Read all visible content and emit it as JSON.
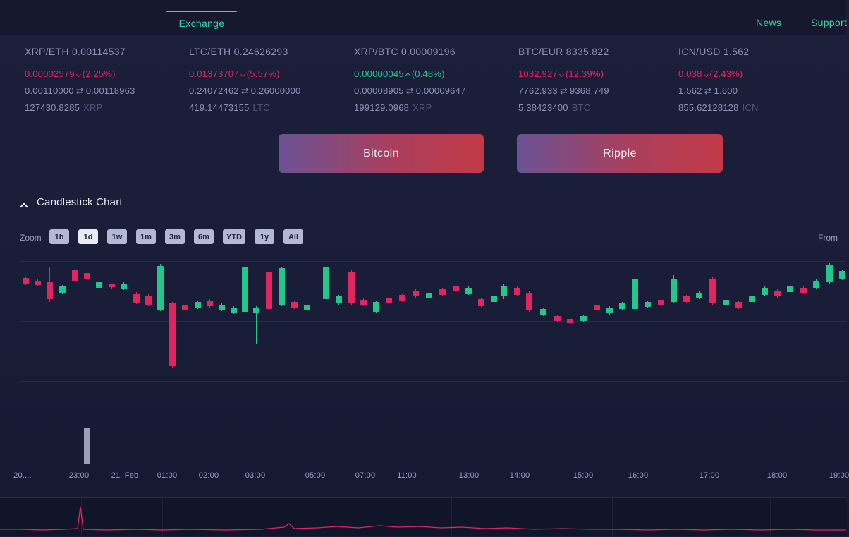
{
  "nav": {
    "exchange_label": "Exchange",
    "news_label": "News",
    "support_label": "Support"
  },
  "glyphs": {
    "range_sep": "⇄"
  },
  "tickers": [
    {
      "pair": "XRP/ETH 0.00114537",
      "change": "0.00002579",
      "direction": "down",
      "pct": "(2.25%)",
      "low": "0.00110000",
      "high": "0.00118963",
      "volume": "127430.8285",
      "unit": "XRP"
    },
    {
      "pair": "LTC/ETH 0.24626293",
      "change": "0.01373707",
      "direction": "down",
      "pct": "(5.57%)",
      "low": "0.24072462",
      "high": "0.26000000",
      "volume": "419.14473155",
      "unit": "LTC"
    },
    {
      "pair": "XRP/BTC 0.00009196",
      "change": "0.00000045",
      "direction": "up",
      "pct": "(0.48%)",
      "low": "0.00008905",
      "high": "0.00009647",
      "volume": "199129.0968",
      "unit": "XRP"
    },
    {
      "pair": "BTC/EUR 8335.822",
      "change": "1032.927",
      "direction": "down",
      "pct": "(12.39%)",
      "low": "7762.933",
      "high": "9368.749",
      "volume": "5.38423400",
      "unit": "BTC"
    },
    {
      "pair": "ICN/USD 1.562",
      "change": "0.038",
      "direction": "down",
      "pct": "(2.43%)",
      "low": "1.562",
      "high": "1.600",
      "volume": "855.62128128",
      "unit": "ICN"
    }
  ],
  "pair_buttons": [
    {
      "label": "Bitcoin"
    },
    {
      "label": "Ripple"
    }
  ],
  "chart_section": {
    "title": "Candlestick Chart",
    "zoom_label": "Zoom",
    "from_label": "From",
    "ranges": [
      "1h",
      "1d",
      "1w",
      "1m",
      "3m",
      "6m",
      "YTD",
      "1y",
      "All"
    ],
    "selected_range": "1d"
  },
  "colors": {
    "accent_teal": "#35d6a8",
    "up_green": "#23c68b",
    "down_pink": "#e3255f",
    "button_gradient_start": "#6a5295",
    "button_gradient_end": "#c23a47"
  },
  "chart_data": {
    "type": "candlestick",
    "x_ticks": [
      {
        "label": "20....",
        "x": 32
      },
      {
        "label": "23:00",
        "x": 112
      },
      {
        "label": "21. Feb",
        "x": 177
      },
      {
        "label": "01:00",
        "x": 237
      },
      {
        "label": "02:00",
        "x": 296
      },
      {
        "label": "03:00",
        "x": 362
      },
      {
        "label": "05:00",
        "x": 447
      },
      {
        "label": "07:00",
        "x": 518
      },
      {
        "label": "11:00",
        "x": 577
      },
      {
        "label": "13:00",
        "x": 665
      },
      {
        "label": "14:00",
        "x": 737
      },
      {
        "label": "15:00",
        "x": 827
      },
      {
        "label": "16:00",
        "x": 905
      },
      {
        "label": "17:00",
        "x": 1006
      },
      {
        "label": "18:00",
        "x": 1102
      },
      {
        "label": "19:00",
        "x": 1190
      }
    ],
    "h_gridlines": [
      12,
      97,
      182,
      234
    ],
    "candles": [
      [
        36,
        34,
        36,
        44,
        46,
        "d"
      ],
      [
        53,
        38,
        40,
        46,
        48,
        "d"
      ],
      [
        70,
        20,
        42,
        66,
        70,
        "d"
      ],
      [
        88,
        46,
        48,
        57,
        59,
        "g"
      ],
      [
        106,
        18,
        24,
        40,
        42,
        "d"
      ],
      [
        123,
        26,
        29,
        37,
        52,
        "d"
      ],
      [
        140,
        40,
        42,
        50,
        52,
        "g"
      ],
      [
        158,
        44,
        45,
        49,
        51,
        "d"
      ],
      [
        175,
        42,
        44,
        51,
        53,
        "g"
      ],
      [
        193,
        56,
        59,
        71,
        73,
        "d"
      ],
      [
        210,
        59,
        61,
        74,
        76,
        "d"
      ],
      [
        227,
        16,
        19,
        81,
        83,
        "g"
      ],
      [
        244,
        70,
        72,
        160,
        164,
        "d"
      ],
      [
        262,
        72,
        74,
        82,
        84,
        "d"
      ],
      [
        280,
        68,
        70,
        78,
        80,
        "g"
      ],
      [
        297,
        66,
        68,
        76,
        78,
        "d"
      ],
      [
        314,
        72,
        74,
        81,
        83,
        "g"
      ],
      [
        331,
        76,
        78,
        85,
        87,
        "g"
      ],
      [
        347,
        18,
        20,
        84,
        86,
        "g"
      ],
      [
        363,
        76,
        78,
        86,
        129,
        "g"
      ],
      [
        381,
        24,
        27,
        80,
        82,
        "d"
      ],
      [
        399,
        20,
        22,
        74,
        76,
        "g"
      ],
      [
        417,
        68,
        70,
        78,
        80,
        "d"
      ],
      [
        435,
        72,
        74,
        82,
        84,
        "g"
      ],
      [
        462,
        18,
        20,
        66,
        68,
        "g"
      ],
      [
        480,
        60,
        62,
        72,
        74,
        "g"
      ],
      [
        498,
        25,
        27,
        72,
        74,
        "d"
      ],
      [
        515,
        65,
        67,
        74,
        76,
        "d"
      ],
      [
        533,
        68,
        70,
        84,
        86,
        "g"
      ],
      [
        551,
        62,
        64,
        72,
        74,
        "d"
      ],
      [
        570,
        58,
        60,
        68,
        70,
        "d"
      ],
      [
        589,
        52,
        54,
        62,
        64,
        "d"
      ],
      [
        608,
        55,
        57,
        65,
        67,
        "g"
      ],
      [
        627,
        50,
        52,
        60,
        62,
        "d"
      ],
      [
        646,
        45,
        47,
        54,
        56,
        "d"
      ],
      [
        664,
        48,
        50,
        58,
        60,
        "g"
      ],
      [
        682,
        64,
        66,
        75,
        77,
        "d"
      ],
      [
        700,
        59,
        61,
        70,
        72,
        "g"
      ],
      [
        714,
        44,
        48,
        62,
        66,
        "g"
      ],
      [
        733,
        48,
        50,
        60,
        62,
        "d"
      ],
      [
        750,
        54,
        57,
        82,
        84,
        "d"
      ],
      [
        770,
        78,
        80,
        88,
        90,
        "g"
      ],
      [
        790,
        88,
        90,
        97,
        99,
        "d"
      ],
      [
        808,
        92,
        94,
        100,
        102,
        "d"
      ],
      [
        827,
        88,
        90,
        97,
        99,
        "g"
      ],
      [
        846,
        72,
        74,
        82,
        84,
        "d"
      ],
      [
        864,
        76,
        78,
        86,
        88,
        "g"
      ],
      [
        882,
        70,
        72,
        80,
        82,
        "g"
      ],
      [
        900,
        34,
        37,
        80,
        82,
        "g"
      ],
      [
        918,
        68,
        70,
        77,
        79,
        "g"
      ],
      [
        937,
        65,
        67,
        74,
        76,
        "d"
      ],
      [
        955,
        32,
        38,
        70,
        72,
        "g"
      ],
      [
        973,
        60,
        62,
        70,
        72,
        "d"
      ],
      [
        991,
        55,
        57,
        64,
        66,
        "g"
      ],
      [
        1010,
        34,
        37,
        72,
        74,
        "d"
      ],
      [
        1029,
        65,
        67,
        74,
        76,
        "g"
      ],
      [
        1047,
        68,
        70,
        78,
        80,
        "d"
      ],
      [
        1066,
        60,
        62,
        70,
        72,
        "g"
      ],
      [
        1084,
        48,
        50,
        60,
        62,
        "g"
      ],
      [
        1102,
        52,
        54,
        62,
        64,
        "d"
      ],
      [
        1120,
        45,
        47,
        56,
        58,
        "g"
      ],
      [
        1139,
        48,
        50,
        57,
        59,
        "d"
      ],
      [
        1157,
        38,
        40,
        50,
        52,
        "g"
      ],
      [
        1176,
        14,
        17,
        42,
        44,
        "g"
      ],
      [
        1194,
        24,
        26,
        37,
        39,
        "g"
      ]
    ],
    "volume_bars": [
      {
        "x": 123,
        "w": 9,
        "h": 52
      }
    ],
    "navigator": {
      "v_gridlines": [
        115,
        230,
        412,
        640,
        868,
        1092
      ],
      "points": [
        [
          0,
          44
        ],
        [
          30,
          44
        ],
        [
          60,
          45
        ],
        [
          90,
          44
        ],
        [
          110,
          43
        ],
        [
          114,
          12
        ],
        [
          118,
          44
        ],
        [
          150,
          45
        ],
        [
          195,
          44
        ],
        [
          230,
          45
        ],
        [
          270,
          44
        ],
        [
          320,
          45
        ],
        [
          370,
          44
        ],
        [
          403,
          41
        ],
        [
          410,
          36
        ],
        [
          417,
          43
        ],
        [
          450,
          42
        ],
        [
          478,
          40
        ],
        [
          508,
          42
        ],
        [
          538,
          39
        ],
        [
          565,
          41
        ],
        [
          595,
          40
        ],
        [
          625,
          42
        ],
        [
          655,
          41
        ],
        [
          688,
          43
        ],
        [
          720,
          42
        ],
        [
          758,
          44
        ],
        [
          798,
          43
        ],
        [
          838,
          44
        ],
        [
          878,
          44
        ],
        [
          918,
          45
        ],
        [
          958,
          44
        ],
        [
          998,
          45
        ],
        [
          1038,
          44
        ],
        [
          1078,
          45
        ],
        [
          1118,
          44
        ],
        [
          1158,
          45
        ],
        [
          1200,
          45
        ]
      ]
    }
  }
}
